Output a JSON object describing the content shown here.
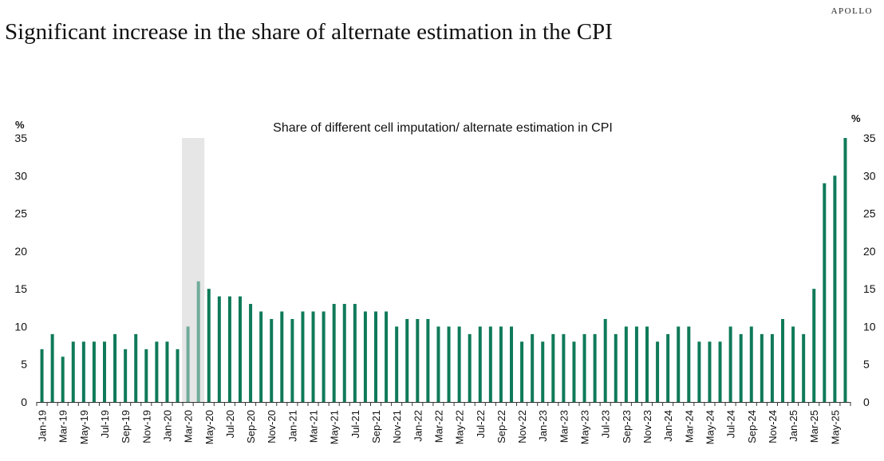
{
  "header": {
    "brand": "APOLLO",
    "title": "Significant increase in the share of alternate estimation in the CPI"
  },
  "chart_data": {
    "type": "bar",
    "title": "Share of different cell imputation/ alternate estimation in CPI",
    "xlabel": "",
    "ylabel_left": "%",
    "ylabel_right": "%",
    "ylim": [
      0,
      35
    ],
    "yticks": [
      0,
      5,
      10,
      15,
      20,
      25,
      30,
      35
    ],
    "grid": false,
    "bar_color": "#0f7a5a",
    "shaded_color": "#e6e6e6",
    "shaded_period": [
      "Mar-20",
      "Apr-20"
    ],
    "categories": [
      "Jan-19",
      "Feb-19",
      "Mar-19",
      "Apr-19",
      "May-19",
      "Jun-19",
      "Jul-19",
      "Aug-19",
      "Sep-19",
      "Oct-19",
      "Nov-19",
      "Dec-19",
      "Jan-20",
      "Feb-20",
      "Mar-20",
      "Apr-20",
      "May-20",
      "Jun-20",
      "Jul-20",
      "Aug-20",
      "Sep-20",
      "Oct-20",
      "Nov-20",
      "Dec-20",
      "Jan-21",
      "Feb-21",
      "Mar-21",
      "Apr-21",
      "May-21",
      "Jun-21",
      "Jul-21",
      "Aug-21",
      "Sep-21",
      "Oct-21",
      "Nov-21",
      "Dec-21",
      "Jan-22",
      "Feb-22",
      "Mar-22",
      "Apr-22",
      "May-22",
      "Jun-22",
      "Jul-22",
      "Aug-22",
      "Sep-22",
      "Oct-22",
      "Nov-22",
      "Dec-22",
      "Jan-23",
      "Feb-23",
      "Mar-23",
      "Apr-23",
      "May-23",
      "Jun-23",
      "Jul-23",
      "Aug-23",
      "Sep-23",
      "Oct-23",
      "Nov-23",
      "Dec-23",
      "Jan-24",
      "Feb-24",
      "Mar-24",
      "Apr-24",
      "May-24",
      "Jun-24",
      "Jul-24",
      "Aug-24",
      "Sep-24",
      "Oct-24",
      "Nov-24",
      "Dec-24",
      "Jan-25",
      "Feb-25",
      "Mar-25",
      "Apr-25",
      "May-25",
      "Jun-25"
    ],
    "values": [
      7,
      9,
      6,
      8,
      8,
      8,
      8,
      9,
      7,
      9,
      7,
      8,
      8,
      7,
      10,
      16,
      15,
      14,
      14,
      14,
      13,
      12,
      11,
      12,
      11,
      12,
      12,
      12,
      13,
      13,
      13,
      12,
      12,
      12,
      10,
      11,
      11,
      11,
      10,
      10,
      10,
      9,
      10,
      10,
      10,
      10,
      8,
      9,
      8,
      9,
      9,
      8,
      9,
      9,
      11,
      9,
      10,
      10,
      10,
      8,
      9,
      10,
      10,
      8,
      8,
      8,
      10,
      9,
      10,
      9,
      9,
      11,
      10,
      9,
      15,
      29,
      30,
      35
    ],
    "xtick_labels": [
      "Jan-19",
      "Mar-19",
      "May-19",
      "Jul-19",
      "Sep-19",
      "Nov-19",
      "Jan-20",
      "Mar-20",
      "May-20",
      "Jul-20",
      "Sep-20",
      "Nov-20",
      "Jan-21",
      "Mar-21",
      "May-21",
      "Jul-21",
      "Sep-21",
      "Nov-21",
      "Jan-22",
      "Mar-22",
      "May-22",
      "Jul-22",
      "Sep-22",
      "Nov-22",
      "Jan-23",
      "Mar-23",
      "May-23",
      "Jul-23",
      "Sep-23",
      "Nov-23",
      "Jan-24",
      "Mar-24",
      "May-24",
      "Jul-24",
      "Sep-24",
      "Nov-24",
      "Jan-25",
      "Mar-25",
      "May-25"
    ]
  }
}
